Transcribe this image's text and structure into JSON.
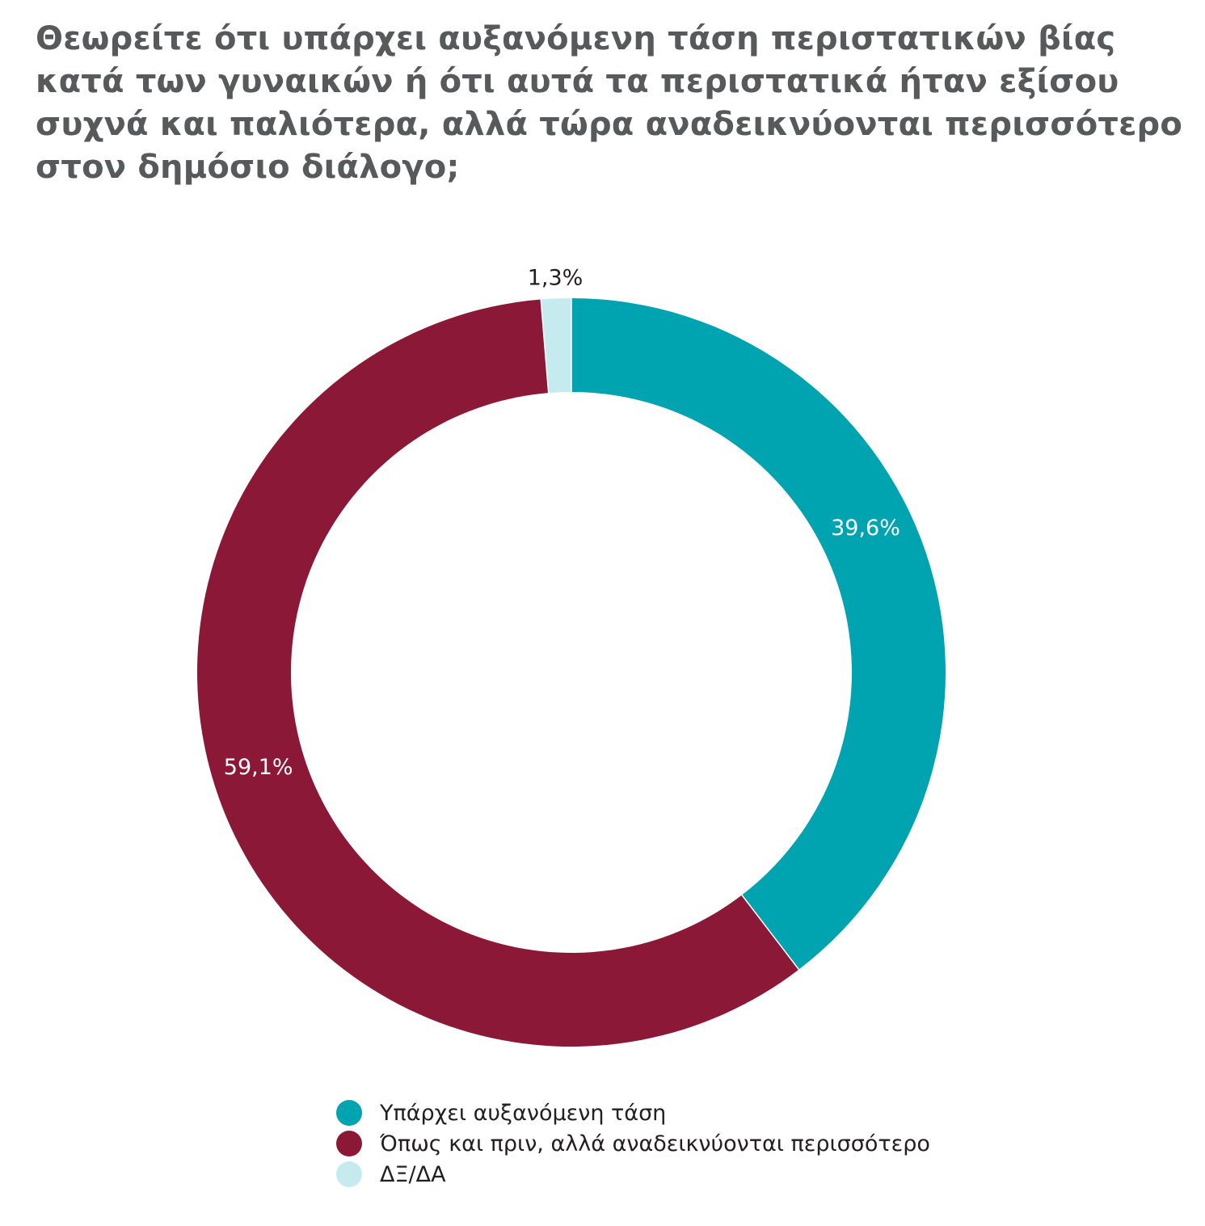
{
  "chart_data": {
    "type": "pie",
    "variant": "donut",
    "title": "Θεωρείτε ότι υπάρχει αυξανόμενη τάση περιστατικών βίας κατά των γυναικών ή ότι αυτά τα περιστατικά ήταν εξίσου συχνά και παλιότερα, αλλά τώρα αναδεικνύονται περισσότερο στον δημόσιο διάλογο;",
    "slices": [
      {
        "label": "Υπάρχει αυξανόμενη τάση",
        "value": 39.6,
        "display": "39,6%",
        "color": "#00a3b0",
        "label_color": "#ffffff"
      },
      {
        "label": "Όπως και πριν, αλλά αναδεικνύονται περισσότερο",
        "value": 59.1,
        "display": "59,1%",
        "color": "#8c1838",
        "label_color": "#ffffff"
      },
      {
        "label": "ΔΞ/ΔΑ",
        "value": 1.3,
        "display": "1,3%",
        "color": "#c6ebee",
        "label_color": "#231f20"
      }
    ],
    "start": "top",
    "direction": "clockwise",
    "legend_position": "bottom"
  }
}
